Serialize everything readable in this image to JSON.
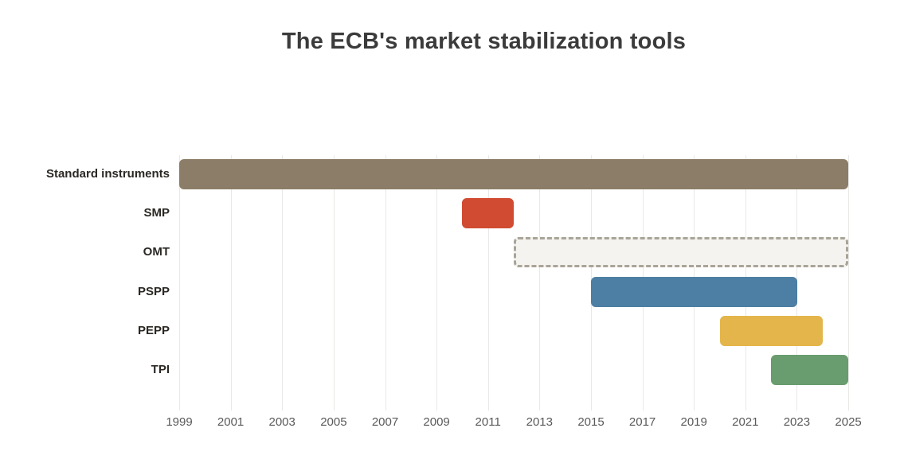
{
  "title": "The ECB's market stabilization tools",
  "colors": {
    "background": "#ffffff",
    "title_text": "#3b3b3b",
    "row_label_text": "#2b2824",
    "tick_label_text": "#595959",
    "gridline": "#e8e8e6",
    "standard_instruments": "#8b7d68",
    "smp": "#d14b32",
    "omt_fill": "#f4f3ef",
    "omt_border": "#a9a498",
    "pspp": "#4d7ea3",
    "pepp": "#e4b54a",
    "tpi": "#699c6f"
  },
  "chart_data": {
    "type": "bar",
    "subtype": "gantt-timeline",
    "title": "The ECB's market stabilization tools",
    "xlabel": "",
    "ylabel": "",
    "x_axis": {
      "min": 1999,
      "max": 2026,
      "ticks": [
        1999,
        2001,
        2003,
        2005,
        2007,
        2009,
        2011,
        2013,
        2015,
        2017,
        2019,
        2021,
        2023,
        2025
      ]
    },
    "grid": true,
    "legend": false,
    "rows": [
      {
        "label": "Standard instruments",
        "start": 1999,
        "end": 2025,
        "color": "#8b7d68",
        "style": "solid"
      },
      {
        "label": "SMP",
        "start": 2010,
        "end": 2012,
        "color": "#d14b32",
        "style": "solid"
      },
      {
        "label": "OMT",
        "start": 2012,
        "end": 2025,
        "color": "#f4f3ef",
        "border_color": "#a9a498",
        "style": "dashed"
      },
      {
        "label": "PSPP",
        "start": 2015,
        "end": 2023,
        "color": "#4d7ea3",
        "style": "solid"
      },
      {
        "label": "PEPP",
        "start": 2020,
        "end": 2024,
        "color": "#e4b54a",
        "style": "solid"
      },
      {
        "label": "TPI",
        "start": 2022,
        "end": 2025,
        "color": "#699c6f",
        "style": "solid"
      }
    ]
  }
}
